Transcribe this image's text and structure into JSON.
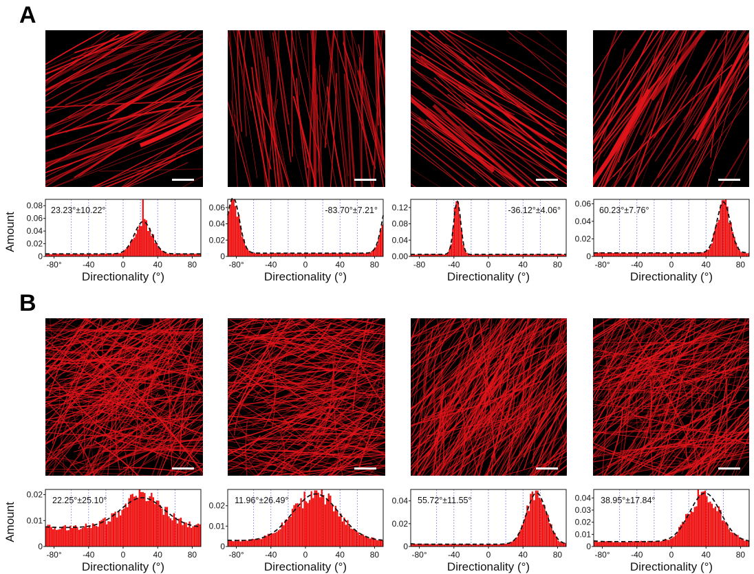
{
  "figure": {
    "panels": [
      {
        "label": "A",
        "ylabel": "Amount",
        "images": [
          {
            "pattern": "sparse-diagonal-filaments",
            "angle_deg": 23.23
          },
          {
            "pattern": "dense-vertical-bundles",
            "angle_deg": -83.7
          },
          {
            "pattern": "aligned-diagonal-bundles",
            "angle_deg": -36.12
          },
          {
            "pattern": "crossing-bundles",
            "angle_deg": 60.23
          }
        ]
      },
      {
        "label": "B",
        "ylabel": "Amount",
        "images": [
          {
            "pattern": "random-mesh",
            "angle_deg": 22.25
          },
          {
            "pattern": "dense-fan-mesh",
            "angle_deg": 11.96
          },
          {
            "pattern": "dense-aligned-mesh",
            "angle_deg": 55.72
          },
          {
            "pattern": "dense-swirl-mesh",
            "angle_deg": 38.95
          }
        ]
      }
    ],
    "colors": {
      "filament": "#e0141a",
      "background": "#000000",
      "histogram": "#f01010",
      "fit": "#111111",
      "grid": "#7b86e0"
    }
  },
  "chart_data": [
    {
      "type": "bar",
      "panel": "A",
      "index": 0,
      "xlabel": "Directionality (°)",
      "ylabel": "Amount",
      "annotation": "23.23°±10.22°",
      "xlim": [
        -90,
        90
      ],
      "ylim": [
        0,
        0.09
      ],
      "yticks": [
        0,
        0.02,
        0.04,
        0.06,
        0.08
      ],
      "ytick_labels": [
        "0",
        "0.02",
        "0.04",
        "0.06",
        "0.08"
      ],
      "xticks": [
        -80,
        -40,
        0,
        40,
        80
      ],
      "xtick_labels": [
        "-80°",
        "-40",
        "0",
        "40",
        "80"
      ],
      "fit": {
        "mu": 23.23,
        "sigma": 10.22,
        "amplitude": 0.051,
        "baseline": 0.004
      },
      "peak_value": 0.09
    },
    {
      "type": "bar",
      "panel": "A",
      "index": 1,
      "xlabel": "Directionality (°)",
      "ylabel": "Amount",
      "annotation": "-83.70°±7.21°",
      "xlim": [
        -90,
        90
      ],
      "ylim": [
        0,
        0.07
      ],
      "yticks": [
        0,
        0.02,
        0.04,
        0.06
      ],
      "ytick_labels": [
        "0",
        "0.02",
        "0.04",
        "0.06"
      ],
      "xticks": [
        -80,
        -40,
        0,
        40,
        80
      ],
      "xtick_labels": [
        "-80°",
        "-40",
        "0",
        "40",
        "80"
      ],
      "fit": {
        "mu": -83.7,
        "sigma": 7.21,
        "amplitude": 0.068,
        "baseline": 0.004
      },
      "peak_value": 0.072
    },
    {
      "type": "bar",
      "panel": "A",
      "index": 2,
      "xlabel": "Directionality (°)",
      "ylabel": "Amount",
      "annotation": "-36.12°±4.06°",
      "xlim": [
        -90,
        90
      ],
      "ylim": [
        0,
        0.14
      ],
      "yticks": [
        0,
        0.04,
        0.08,
        0.12
      ],
      "ytick_labels": [
        "0.00",
        "0.04",
        "0.08",
        "0.12"
      ],
      "xticks": [
        -80,
        -40,
        0,
        40,
        80
      ],
      "xtick_labels": [
        "-80",
        "-40",
        "0",
        "40",
        "80"
      ],
      "fit": {
        "mu": -36.12,
        "sigma": 4.06,
        "amplitude": 0.13,
        "baseline": 0.005
      },
      "peak_value": 0.135
    },
    {
      "type": "bar",
      "panel": "A",
      "index": 3,
      "xlabel": "Directionality (°)",
      "ylabel": "Amount",
      "annotation": "60.23°±7.76°",
      "xlim": [
        -90,
        90
      ],
      "ylim": [
        0,
        0.065
      ],
      "yticks": [
        0,
        0.02,
        0.04,
        0.06
      ],
      "ytick_labels": [
        "0",
        "0.02",
        "0.04",
        "0.06"
      ],
      "xticks": [
        -80,
        -40,
        0,
        40,
        80
      ],
      "xtick_labels": [
        "-80°",
        "-40",
        "0",
        "40",
        "80"
      ],
      "fit": {
        "mu": 60.23,
        "sigma": 7.76,
        "amplitude": 0.058,
        "baseline": 0.004
      },
      "peak_value": 0.064
    },
    {
      "type": "bar",
      "panel": "B",
      "index": 0,
      "xlabel": "Directionality (°)",
      "ylabel": "Amount",
      "annotation": "22.25°±25.10°",
      "xlim": [
        -90,
        90
      ],
      "ylim": [
        0,
        0.022
      ],
      "yticks": [
        0,
        0.01,
        0.02
      ],
      "ytick_labels": [
        "0",
        "0.01",
        "0.02"
      ],
      "xticks": [
        -80,
        -40,
        0,
        40,
        80
      ],
      "xtick_labels": [
        "-80°",
        "-40",
        "0",
        "40",
        "80"
      ],
      "fit": {
        "mu": 22.25,
        "sigma": 25.1,
        "amplitude": 0.0115,
        "baseline": 0.0073
      },
      "peak_value": 0.021
    },
    {
      "type": "bar",
      "panel": "B",
      "index": 1,
      "xlabel": "Directionality (°)",
      "ylabel": "Amount",
      "annotation": "11.96°±26.49°",
      "xlim": [
        -90,
        90
      ],
      "ylim": [
        0,
        0.028
      ],
      "yticks": [
        0,
        0.01,
        0.02
      ],
      "ytick_labels": [
        "0",
        "0.01",
        "0.02"
      ],
      "xticks": [
        -80,
        -40,
        0,
        40,
        80
      ],
      "xtick_labels": [
        "-80°",
        "-40",
        "0",
        "40",
        "80"
      ],
      "fit": {
        "mu": 11.96,
        "sigma": 26.49,
        "amplitude": 0.023,
        "baseline": 0.0028
      },
      "peak_value": 0.0275
    },
    {
      "type": "bar",
      "panel": "B",
      "index": 2,
      "xlabel": "Directionality (°)",
      "ylabel": "Amount",
      "annotation": "55.72°±11.55°",
      "xlim": [
        -90,
        90
      ],
      "ylim": [
        0,
        0.05
      ],
      "yticks": [
        0,
        0.02,
        0.04
      ],
      "ytick_labels": [
        "0",
        "0.02",
        "0.04"
      ],
      "xticks": [
        -80,
        -40,
        0,
        40,
        80
      ],
      "xtick_labels": [
        "-80°",
        "-40",
        "0",
        "40",
        "80"
      ],
      "fit": {
        "mu": 55.72,
        "sigma": 11.55,
        "amplitude": 0.045,
        "baseline": 0.002
      },
      "peak_value": 0.049
    },
    {
      "type": "bar",
      "panel": "B",
      "index": 3,
      "xlabel": "Directionality (°)",
      "ylabel": "Amount",
      "annotation": "38.95°±17.84°",
      "xlim": [
        -90,
        90
      ],
      "ylim": [
        0,
        0.047
      ],
      "yticks": [
        0,
        0.01,
        0.02,
        0.03,
        0.04
      ],
      "ytick_labels": [
        "0",
        "0.01",
        "0.02",
        "0.03",
        "0.04"
      ],
      "xticks": [
        -80,
        -40,
        0,
        40,
        80
      ],
      "xtick_labels": [
        "-80°",
        "-40",
        "0",
        "40",
        "80"
      ],
      "fit": {
        "mu": 38.95,
        "sigma": 17.84,
        "amplitude": 0.04,
        "baseline": 0.004
      },
      "peak_value": 0.046
    }
  ]
}
